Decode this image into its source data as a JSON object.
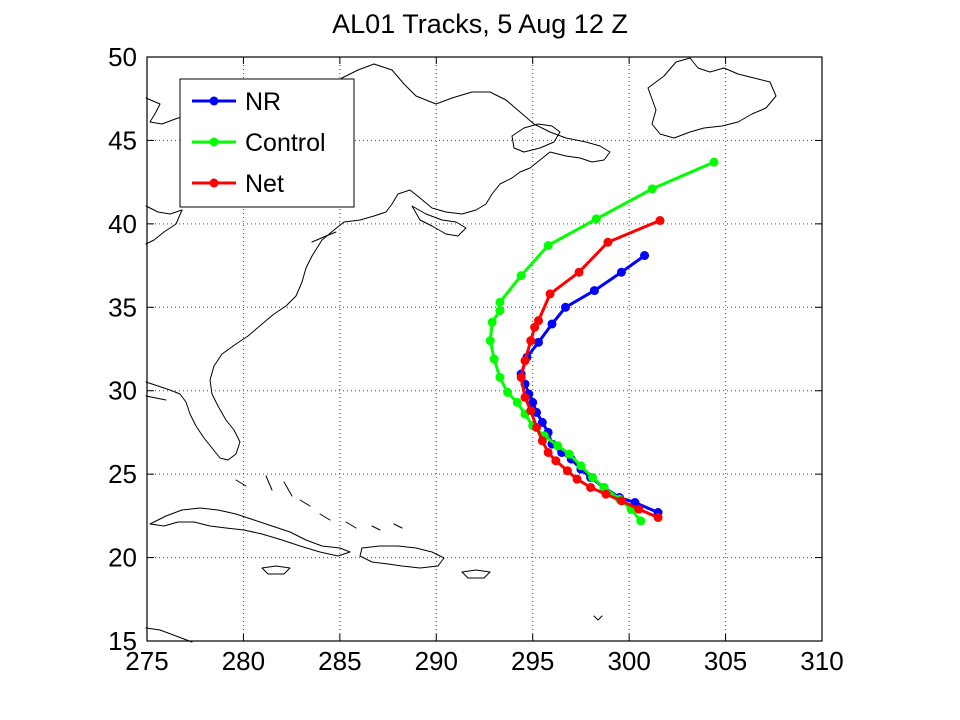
{
  "chart_data": {
    "type": "line",
    "title": "AL01 Tracks, 5 Aug 12 Z",
    "xlim": [
      275,
      310
    ],
    "ylim": [
      15,
      50
    ],
    "xticks": [
      275,
      280,
      285,
      290,
      295,
      300,
      305,
      310
    ],
    "yticks": [
      15,
      20,
      25,
      30,
      35,
      40,
      45,
      50
    ],
    "xtick_labels": [
      "275",
      "280",
      "285",
      "290",
      "295",
      "300",
      "305",
      "310"
    ],
    "ytick_labels": [
      "15",
      "20",
      "25",
      "30",
      "35",
      "40",
      "45",
      "50"
    ],
    "grid": true,
    "legend_position": "top-left",
    "background_map": "coastlines",
    "series": [
      {
        "name": "NR",
        "color": "#0000ff",
        "x": [
          301.5,
          300.3,
          299.5,
          298.7,
          298.0,
          297.5,
          297.0,
          296.5,
          296.0,
          295.8,
          295.5,
          295.2,
          295.0,
          294.8,
          294.6,
          294.4,
          294.7,
          295.3,
          296.0,
          296.7,
          298.2,
          299.6,
          300.8
        ],
        "y": [
          22.7,
          23.3,
          23.6,
          24.2,
          24.8,
          25.3,
          25.9,
          26.3,
          26.8,
          27.5,
          28.1,
          28.7,
          29.3,
          29.8,
          30.4,
          31.0,
          32.0,
          32.9,
          34.0,
          35.0,
          36.0,
          37.1,
          38.1
        ]
      },
      {
        "name": "Control",
        "color": "#00ff00",
        "x": [
          300.6,
          300.1,
          299.5,
          298.7,
          298.1,
          297.5,
          296.9,
          296.3,
          295.6,
          295.0,
          294.6,
          294.2,
          293.7,
          293.3,
          293.0,
          292.8,
          292.9,
          293.3,
          293.3,
          294.4,
          295.8,
          298.3,
          301.2,
          304.4
        ],
        "y": [
          22.2,
          22.9,
          23.5,
          24.2,
          24.8,
          25.5,
          26.2,
          26.7,
          27.3,
          27.9,
          28.6,
          29.3,
          29.9,
          30.8,
          31.9,
          33.0,
          34.1,
          34.8,
          35.3,
          36.9,
          38.7,
          40.3,
          42.1,
          43.7
        ]
      },
      {
        "name": "Net",
        "color": "#ff0000",
        "x": [
          301.5,
          300.5,
          299.6,
          298.8,
          298.0,
          297.3,
          296.8,
          296.2,
          295.8,
          295.5,
          295.2,
          294.9,
          294.6,
          294.4,
          294.6,
          294.9,
          295.1,
          295.3,
          295.9,
          297.4,
          298.9,
          301.6
        ],
        "y": [
          22.4,
          22.9,
          23.4,
          23.8,
          24.2,
          24.7,
          25.2,
          25.8,
          26.3,
          27.0,
          27.8,
          28.8,
          29.6,
          30.8,
          31.8,
          33.0,
          33.8,
          34.2,
          35.8,
          37.1,
          38.9,
          40.2
        ]
      }
    ]
  }
}
